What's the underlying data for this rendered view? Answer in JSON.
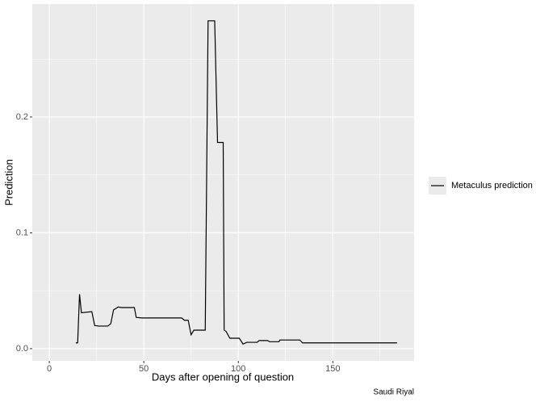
{
  "chart_data": {
    "type": "line",
    "x_label": "Days after opening of question",
    "y_label": "Prediction",
    "caption": "Saudi Riyal",
    "x": [
      14,
      15,
      16,
      17,
      22.5,
      24,
      26,
      31,
      32.5,
      34,
      36.5,
      38,
      45,
      46,
      49,
      70,
      71.5,
      73.5,
      75,
      76.5,
      82.5,
      84,
      87.5,
      89,
      92,
      92.5,
      93.5,
      95.5,
      100.5,
      102.5,
      104.5,
      110,
      111,
      115.5,
      116.5,
      121.5,
      122,
      132.5,
      134,
      184
    ],
    "series": [
      {
        "name": "Metaculus prediction",
        "color": "#000000",
        "values": [
          0.005,
          0.005,
          0.047,
          0.031,
          0.032,
          0.02,
          0.0195,
          0.0195,
          0.0215,
          0.0335,
          0.036,
          0.0355,
          0.0355,
          0.027,
          0.0265,
          0.0265,
          0.0245,
          0.0245,
          0.012,
          0.016,
          0.016,
          0.283,
          0.283,
          0.178,
          0.178,
          0.016,
          0.015,
          0.009,
          0.009,
          0.004,
          0.0055,
          0.0055,
          0.007,
          0.007,
          0.006,
          0.006,
          0.0075,
          0.0075,
          0.005,
          0.005
        ]
      }
    ],
    "xlim": [
      -9,
      193
    ],
    "ylim": [
      -0.0105,
      0.2975
    ],
    "xticks": [
      0,
      50,
      100,
      150
    ],
    "yticks": [
      {
        "value": 0,
        "label": "0.0"
      },
      0.1,
      0.2
    ],
    "xminor": [
      25,
      75,
      125,
      175
    ],
    "yminor": [
      0.05,
      0.15,
      0.25
    ],
    "grid": true
  }
}
